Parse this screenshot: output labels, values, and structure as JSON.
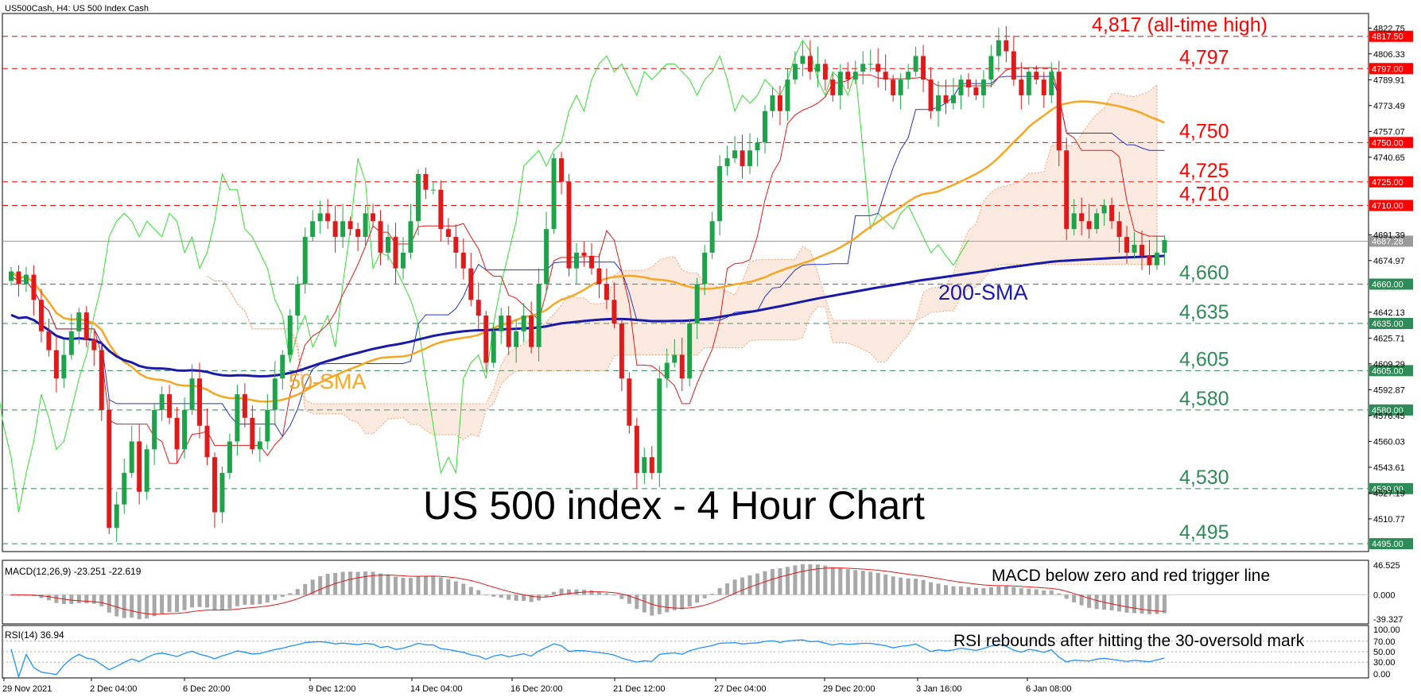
{
  "header": {
    "symbol": "US500Cash, H4:  US 500 Index Cash"
  },
  "chart_data": {
    "type": "candlestick",
    "title": "US 500 index - 4 Hour Chart",
    "ylim": [
      4490,
      4832
    ],
    "x_tick_labels": [
      "29 Nov 2021",
      "2 Dec 04:00",
      "6 Dec 20:00",
      "9 Dec 12:00",
      "14 Dec 04:00",
      "16 Dec 20:00",
      "21 Dec 12:00",
      "27 Dec 04:00",
      "29 Dec 20:00",
      "3 Jan 16:00",
      "6 Jan 08:00"
    ],
    "y_tick_labels": [
      "4822.75",
      "4806.33",
      "4789.91",
      "4773.49",
      "4757.07",
      "4740.65",
      "4691.39",
      "4674.97",
      "4642.13",
      "4625.71",
      "4609.29",
      "4592.87",
      "4576.45",
      "4560.03",
      "4543.61",
      "4527.19",
      "4510.77"
    ],
    "levels": [
      {
        "value": 4817.5,
        "tag": "4817.50",
        "label": "4,817 (all-time high)",
        "color": "#ff0000"
      },
      {
        "value": 4797,
        "tag": "4797.00",
        "label": "4,797",
        "color": "#ff0000"
      },
      {
        "value": 4750,
        "tag": "4750.00",
        "label": "4,750",
        "color": "#ff0000"
      },
      {
        "value": 4725,
        "tag": "4725.00",
        "label": "4,725",
        "color": "#ff0000"
      },
      {
        "value": 4710,
        "tag": "4710.00",
        "label": "4,710",
        "color": "#ff0000"
      },
      {
        "value": 4660,
        "tag": "4660.00",
        "label": "4,660",
        "color": "#2e8b57"
      },
      {
        "value": 4635,
        "tag": "4635.00",
        "label": "4,635",
        "color": "#2e8b57"
      },
      {
        "value": 4605,
        "tag": "4605.00",
        "label": "4,605",
        "color": "#2e8b57"
      },
      {
        "value": 4580,
        "tag": "4580.00",
        "label": "4,580",
        "color": "#2e8b57"
      },
      {
        "value": 4530,
        "tag": "4530.00",
        "label": "4,530",
        "color": "#2e8b57"
      },
      {
        "value": 4495,
        "tag": "4495.00",
        "label": "4,495",
        "color": "#2e8b57"
      }
    ],
    "current_price": {
      "value": 4687.28,
      "tag": "4687.28"
    },
    "annotations": {
      "sma50": "50-SMA",
      "sma200": "200-SMA"
    },
    "close": [
      4668,
      4660,
      4666,
      4650,
      4630,
      4618,
      4600,
      4615,
      4630,
      4642,
      4625,
      4618,
      4580,
      4505,
      4520,
      4540,
      4560,
      4528,
      4555,
      4580,
      4590,
      4575,
      4555,
      4580,
      4600,
      4570,
      4550,
      4515,
      4540,
      4560,
      4590,
      4575,
      4555,
      4560,
      4580,
      4600,
      4615,
      4640,
      4660,
      4690,
      4700,
      4705,
      4700,
      4690,
      4700,
      4695,
      4690,
      4705,
      4700,
      4680,
      4690,
      4670,
      4680,
      4700,
      4730,
      4720,
      4720,
      4695,
      4690,
      4680,
      4670,
      4650,
      4640,
      4610,
      4630,
      4640,
      4620,
      4630,
      4640,
      4620,
      4660,
      4695,
      4740,
      4725,
      4670,
      4680,
      4678,
      4670,
      4660,
      4650,
      4635,
      4600,
      4570,
      4540,
      4550,
      4540,
      4600,
      4610,
      4615,
      4600,
      4635,
      4660,
      4680,
      4700,
      4735,
      4740,
      4745,
      4735,
      4745,
      4750,
      4770,
      4780,
      4770,
      4790,
      4800,
      4805,
      4795,
      4800,
      4790,
      4780,
      4795,
      4790,
      4795,
      4800,
      4800,
      4795,
      4790,
      4780,
      4790,
      4795,
      4805,
      4790,
      4770,
      4780,
      4775,
      4780,
      4790,
      4785,
      4780,
      4790,
      4805,
      4815,
      4808,
      4790,
      4780,
      4795,
      4790,
      4780,
      4795,
      4745,
      4695,
      4705,
      4700,
      4695,
      4705,
      4710,
      4700,
      4690,
      4680,
      4685,
      4678,
      4672,
      4680,
      4688
    ],
    "macd": {
      "label": "MACD(12,26,9) -23.251 -22.619",
      "ylim": [
        -39.327,
        46.525
      ],
      "y_tick_labels": [
        "46.525",
        "0.000",
        "-39.327"
      ],
      "annotation": "MACD below zero and red trigger line"
    },
    "rsi": {
      "label": "RSI(14) 36.94",
      "ylim": [
        0,
        100
      ],
      "y_tick_labels": [
        "100.00",
        "70.00",
        "50.00",
        "30.00",
        "0.00"
      ],
      "annotation": "RSI rebounds after hitting the 30-oversold mark"
    }
  },
  "colors": {
    "bull": "#1ea34a",
    "bear": "#e0191b",
    "sma50": "#f5a623",
    "sma200": "#1a1aa8",
    "tenkan": "#e0191b",
    "kijun": "#2233cc",
    "chikou": "#33dd33",
    "cloud": "#f0a070",
    "macd_hist": "#a8a8a8",
    "macd_signal": "#e0191b",
    "rsi_line": "#1e90ff"
  }
}
